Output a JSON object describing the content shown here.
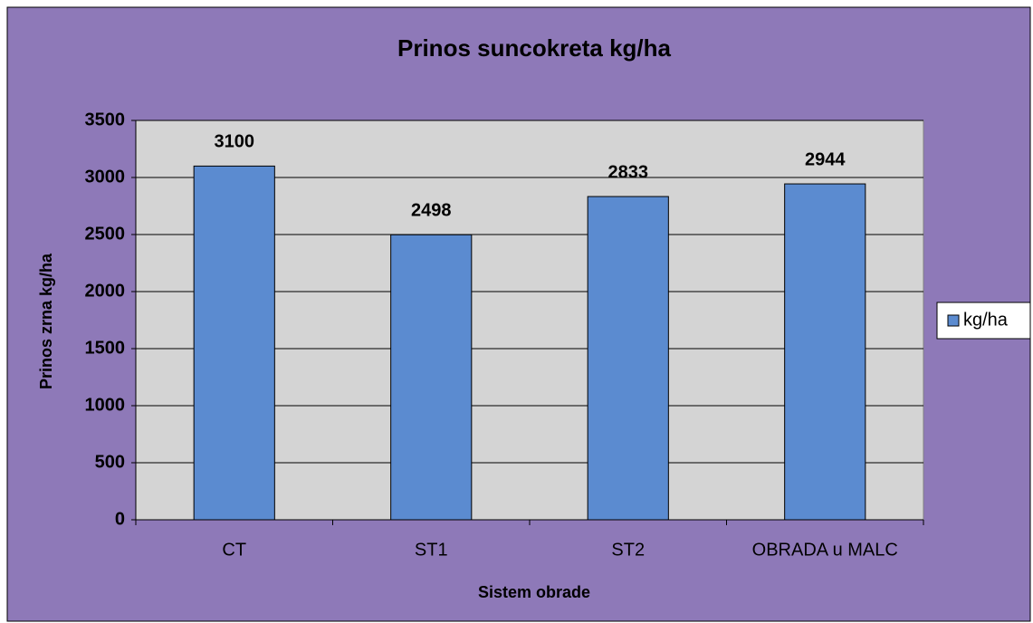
{
  "chart_data": {
    "type": "bar",
    "title": "Prinos suncokreta kg/ha",
    "x_label": "Sistem obrade",
    "y_label": "Prinos zrna kg/ha",
    "categories": [
      "CT",
      "ST1",
      "ST2",
      "OBRADA u MALC"
    ],
    "series": [
      {
        "name": "kg/ha",
        "color": "#5b8bd0",
        "values": [
          3100,
          2498,
          2833,
          2944
        ]
      }
    ],
    "ylim": [
      0,
      3500
    ],
    "yticks": [
      0,
      500,
      1000,
      1500,
      2000,
      2500,
      3000,
      3500
    ],
    "grid": true,
    "legend": "right"
  }
}
